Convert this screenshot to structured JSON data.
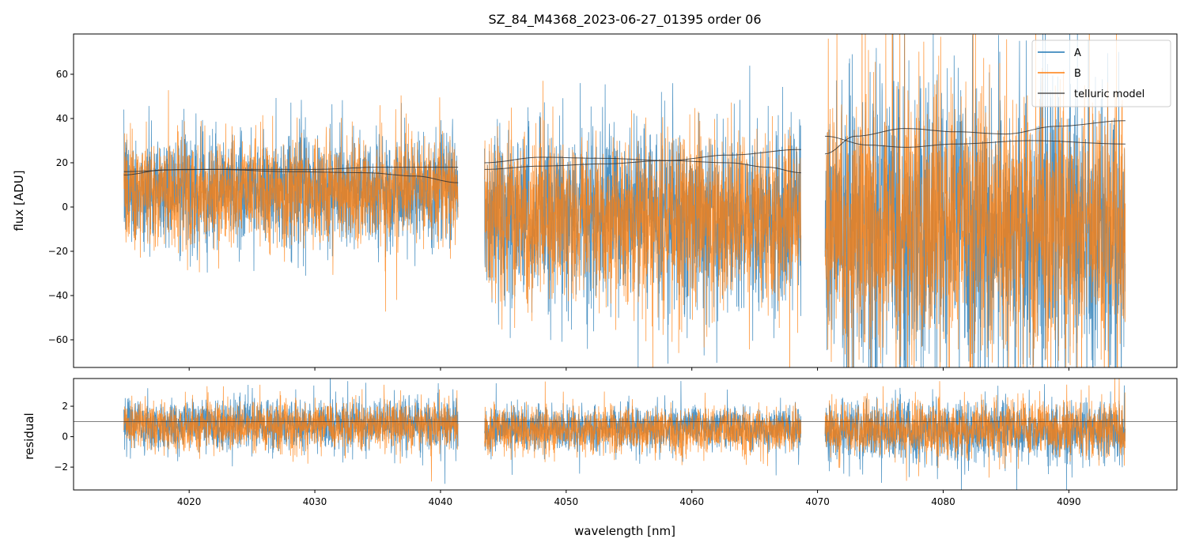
{
  "chart_data": [
    {
      "type": "line",
      "title": "SZ_84_M4368_2023-06-27_01395  order 06",
      "xlabel": "",
      "ylabel": "flux [ADU]",
      "xlim": [
        4010.8,
        4098.6
      ],
      "ylim": [
        -72.5,
        78.2
      ],
      "xticks": [
        4020,
        4030,
        4040,
        4050,
        4060,
        4070,
        4080,
        4090
      ],
      "yticks": [
        -60,
        -40,
        -20,
        0,
        20,
        40,
        60
      ],
      "ytick_labels": [
        "−60",
        "−40",
        "−20",
        "0",
        "20",
        "40",
        "60"
      ],
      "legend": {
        "placement": "top-right",
        "entries": [
          "A",
          "B",
          "telluric model"
        ]
      },
      "segments": [
        {
          "x_range": [
            4014.8,
            4041.4
          ],
          "A": {
            "mean": 8,
            "std": 13
          },
          "B": {
            "mean": 7,
            "std": 12
          }
        },
        {
          "x_range": [
            4043.5,
            4068.7
          ],
          "A": {
            "mean": -4,
            "std": 20
          },
          "B": {
            "mean": -5,
            "std": 19
          }
        },
        {
          "x_range": [
            4070.6,
            4094.5
          ],
          "A": {
            "mean": -10,
            "std": 34
          },
          "B": {
            "mean": -8,
            "std": 30
          }
        }
      ],
      "series": [
        {
          "name": "A",
          "color": "#1f77b4"
        },
        {
          "name": "B",
          "color": "#ff7f0e"
        },
        {
          "name": "telluric model",
          "color": "#333333",
          "curves": [
            {
              "x": [
                4014.8,
                4020,
                4025,
                4030,
                4035,
                4041.4
              ],
              "y": [
                16,
                17,
                17,
                17,
                18,
                18
              ]
            },
            {
              "x": [
                4014.8,
                4018,
                4022,
                4028,
                4034,
                4038,
                4041.4
              ],
              "y": [
                14.5,
                16.8,
                17,
                16,
                15.5,
                14,
                11
              ]
            },
            {
              "x": [
                4043.5,
                4048,
                4053,
                4058,
                4063,
                4066,
                4068.7
              ],
              "y": [
                20,
                22.5,
                22,
                21,
                20,
                18,
                15.5
              ]
            },
            {
              "x": [
                4043.5,
                4048,
                4053,
                4058,
                4063,
                4068.7
              ],
              "y": [
                17,
                18.5,
                19.5,
                21,
                23.5,
                26
              ]
            },
            {
              "x": [
                4070.6,
                4073,
                4077,
                4081,
                4085,
                4089,
                4094.5
              ],
              "y": [
                24,
                32,
                35.5,
                34,
                33,
                36.5,
                39
              ]
            },
            {
              "x": [
                4070.6,
                4074,
                4077,
                4081,
                4087,
                4094.5
              ],
              "y": [
                32,
                28,
                27,
                28.5,
                30,
                28.5
              ]
            }
          ]
        }
      ]
    },
    {
      "type": "line",
      "title": "",
      "xlabel": "wavelength [nm]",
      "ylabel": "residual",
      "xlim": [
        4010.8,
        4098.6
      ],
      "ylim": [
        -3.5,
        3.82
      ],
      "xticks": [
        4020,
        4030,
        4040,
        4050,
        4060,
        4070,
        4080,
        4090
      ],
      "xtick_labels": [
        "4020",
        "4030",
        "4040",
        "4050",
        "4060",
        "4070",
        "4080",
        "4090"
      ],
      "yticks": [
        -2,
        0,
        2
      ],
      "ytick_labels": [
        "−2",
        "0",
        "2"
      ],
      "reference_line": 1,
      "segments": [
        {
          "x_range": [
            4014.8,
            4041.4
          ],
          "A": {
            "mean": 0.8,
            "std": 0.85
          },
          "B": {
            "mean": 0.7,
            "std": 0.8
          }
        },
        {
          "x_range": [
            4043.5,
            4068.7
          ],
          "A": {
            "mean": 0.6,
            "std": 0.7
          },
          "B": {
            "mean": 0.4,
            "std": 0.75
          }
        },
        {
          "x_range": [
            4070.6,
            4094.5
          ],
          "A": {
            "mean": 0.4,
            "std": 1.0
          },
          "B": {
            "mean": 0.5,
            "std": 0.9
          }
        }
      ]
    }
  ]
}
